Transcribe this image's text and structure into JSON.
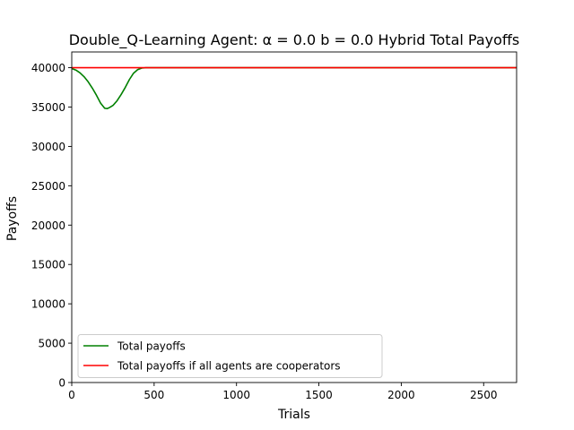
{
  "chart_data": {
    "type": "line",
    "title": "Double_Q-Learning Agent: α = 0.0 b = 0.0 Hybrid Total Payoffs",
    "xlabel": "Trials",
    "ylabel": "Payoffs",
    "xlim": [
      0,
      2700
    ],
    "ylim": [
      0,
      42000
    ],
    "xticks": [
      0,
      500,
      1000,
      1500,
      2000,
      2500
    ],
    "yticks": [
      0,
      5000,
      10000,
      15000,
      20000,
      25000,
      30000,
      35000,
      40000
    ],
    "grid": false,
    "legend_position": "lower-left",
    "series": [
      {
        "name": "Total payoffs",
        "color": "#008000",
        "x": [
          0,
          25,
          50,
          75,
          100,
          125,
          150,
          175,
          200,
          215,
          230,
          250,
          275,
          300,
          325,
          350,
          375,
          400,
          425,
          450,
          500,
          1000,
          1500,
          2000,
          2500,
          2700
        ],
        "y": [
          39900,
          39700,
          39350,
          38850,
          38200,
          37400,
          36500,
          35500,
          34850,
          34800,
          34950,
          35200,
          35800,
          36600,
          37500,
          38500,
          39300,
          39750,
          39950,
          40000,
          40000,
          40000,
          40000,
          40000,
          40000,
          40000
        ]
      },
      {
        "name": "Total payoffs if all agents are cooperators",
        "color": "#ff0000",
        "x": [
          0,
          2700
        ],
        "y": [
          40000,
          40000
        ]
      }
    ]
  }
}
